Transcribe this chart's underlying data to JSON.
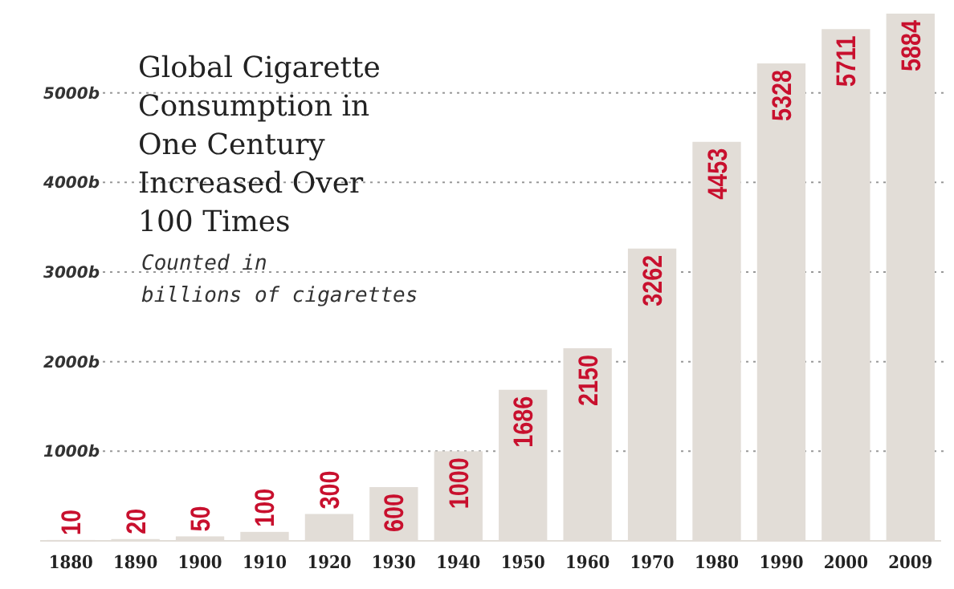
{
  "chart_data": {
    "type": "bar",
    "title": "Global Cigarette Consumption in One Century Increased Over 100 Times",
    "subtitle": "Counted in billions of cigarettes",
    "categories": [
      "1880",
      "1890",
      "1900",
      "1910",
      "1920",
      "1930",
      "1940",
      "1950",
      "1960",
      "1970",
      "1980",
      "1990",
      "2000",
      "2009"
    ],
    "values": [
      10,
      20,
      50,
      100,
      300,
      600,
      1000,
      1686,
      2150,
      3262,
      4453,
      5328,
      5711,
      5884
    ],
    "color": "#e2ddd7",
    "data_labels": true,
    "ylim": [
      0,
      6000
    ],
    "yticks": [
      {
        "value": 1000,
        "label": "1000b"
      },
      {
        "value": 2000,
        "label": "2000b"
      },
      {
        "value": 3000,
        "label": "3000b"
      },
      {
        "value": 4000,
        "label": "4000b"
      },
      {
        "value": 5000,
        "label": "5000b"
      }
    ],
    "grid": "y"
  }
}
